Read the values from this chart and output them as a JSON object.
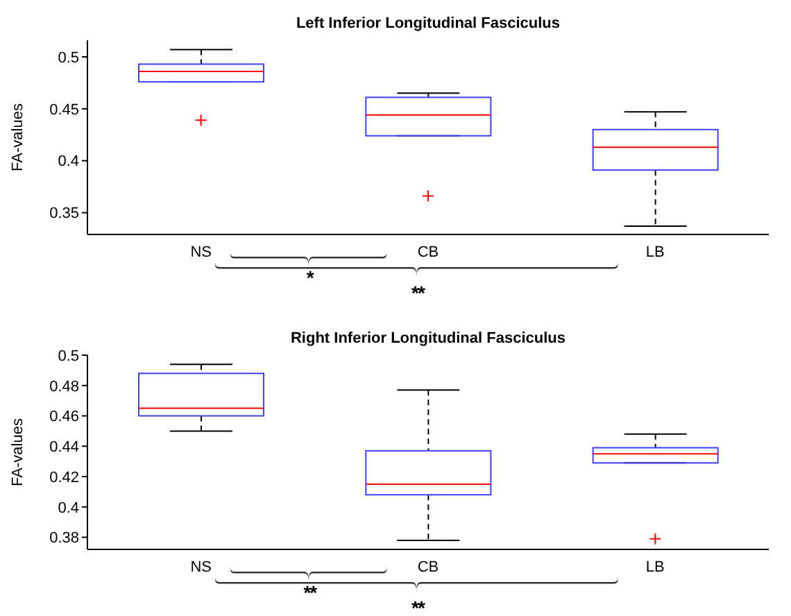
{
  "chart_data": [
    {
      "type": "box",
      "title": "Left Inferior Longitudinal Fasciculus",
      "ylabel": "FA-values",
      "categories": [
        "NS",
        "CB",
        "LB"
      ],
      "ylim": [
        0.329,
        0.516
      ],
      "yticks": [
        0.35,
        0.4,
        0.45,
        0.5
      ],
      "grid": false,
      "legend": false,
      "annotations": [
        "*",
        "**"
      ],
      "series": [
        {
          "color": "#4040ff",
          "boxes": [
            {
              "low": 0.476,
              "q1": 0.476,
              "median": 0.486,
              "q3": 0.493,
              "high": 0.507,
              "outliers": [
                0.439
              ]
            },
            {
              "low": 0.424,
              "q1": 0.424,
              "median": 0.444,
              "q3": 0.461,
              "high": 0.465,
              "outliers": [
                0.366
              ]
            },
            {
              "low": 0.337,
              "q1": 0.391,
              "median": 0.413,
              "q3": 0.43,
              "high": 0.447
            }
          ]
        }
      ]
    },
    {
      "type": "box",
      "title": "Right Inferior Longitudinal Fasciculus",
      "ylabel": "FA-values",
      "categories": [
        "NS",
        "CB",
        "LB"
      ],
      "ylim": [
        0.372,
        0.5
      ],
      "yticks": [
        0.38,
        0.4,
        0.42,
        0.44,
        0.46,
        0.48,
        0.5
      ],
      "grid": false,
      "legend": false,
      "annotations": [
        "**",
        "**"
      ],
      "series": [
        {
          "color": "#4040ff",
          "boxes": [
            {
              "low": 0.45,
              "q1": 0.46,
              "median": 0.465,
              "q3": 0.488,
              "high": 0.494
            },
            {
              "low": 0.378,
              "q1": 0.408,
              "median": 0.415,
              "q3": 0.437,
              "high": 0.477
            },
            {
              "low": 0.429,
              "q1": 0.429,
              "median": 0.435,
              "q3": 0.439,
              "high": 0.448,
              "outliers": [
                0.379
              ]
            }
          ]
        }
      ]
    }
  ]
}
